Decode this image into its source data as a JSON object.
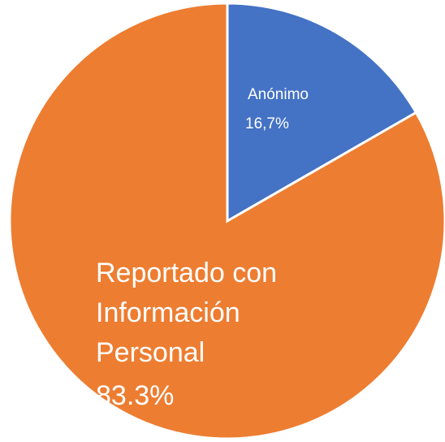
{
  "chart_data": {
    "type": "pie",
    "categories": [
      "Anónimo",
      "Reportado con Información Personal"
    ],
    "values": [
      16.7,
      83.3
    ],
    "value_labels": [
      "16,7%",
      "83.3%"
    ],
    "colors": [
      "#4472c4",
      "#ed7d31"
    ]
  }
}
